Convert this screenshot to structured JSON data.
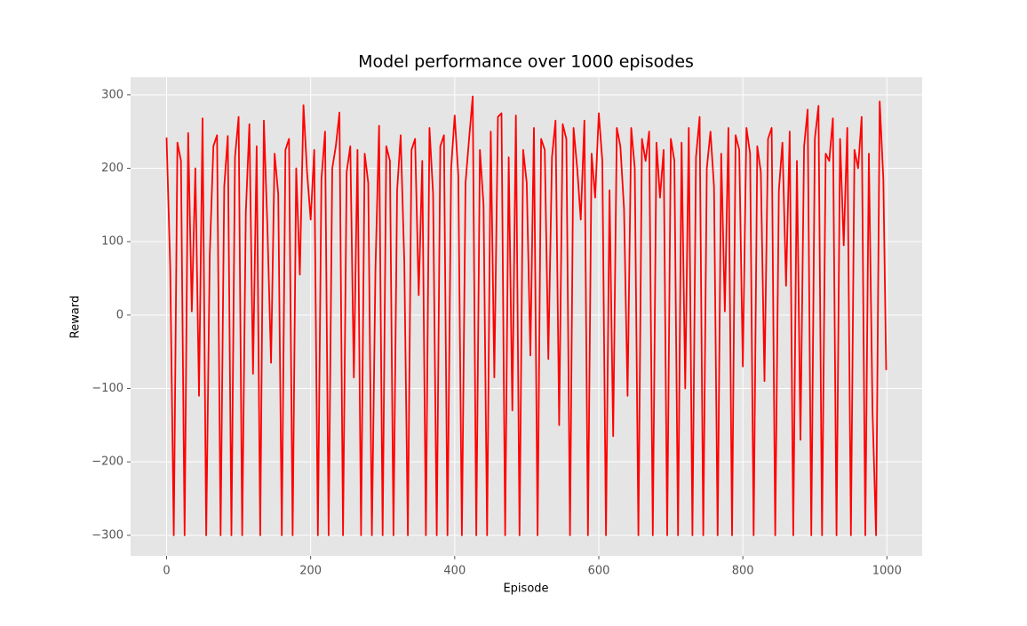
{
  "chart_data": {
    "type": "line",
    "title": "Model performance over 1000 episodes",
    "xlabel": "Episode",
    "ylabel": "Reward",
    "x": [
      0,
      5,
      10,
      15,
      20,
      25,
      30,
      35,
      40,
      45,
      50,
      55,
      60,
      65,
      70,
      75,
      80,
      85,
      90,
      95,
      100,
      105,
      110,
      115,
      120,
      125,
      130,
      135,
      140,
      145,
      150,
      155,
      160,
      165,
      170,
      175,
      180,
      185,
      190,
      195,
      200,
      205,
      210,
      215,
      220,
      225,
      230,
      235,
      240,
      245,
      250,
      255,
      260,
      265,
      270,
      275,
      280,
      285,
      290,
      295,
      300,
      305,
      310,
      315,
      320,
      325,
      330,
      335,
      340,
      345,
      350,
      355,
      360,
      365,
      370,
      375,
      380,
      385,
      390,
      395,
      400,
      405,
      410,
      415,
      420,
      425,
      430,
      435,
      440,
      445,
      450,
      455,
      460,
      465,
      470,
      475,
      480,
      485,
      490,
      495,
      500,
      505,
      510,
      515,
      520,
      525,
      530,
      535,
      540,
      545,
      550,
      555,
      560,
      565,
      570,
      575,
      580,
      585,
      590,
      595,
      600,
      605,
      610,
      615,
      620,
      625,
      630,
      635,
      640,
      645,
      650,
      655,
      660,
      665,
      670,
      675,
      680,
      685,
      690,
      695,
      700,
      705,
      710,
      715,
      720,
      725,
      730,
      735,
      740,
      745,
      750,
      755,
      760,
      765,
      770,
      775,
      780,
      785,
      790,
      795,
      800,
      805,
      810,
      815,
      820,
      825,
      830,
      835,
      840,
      845,
      850,
      855,
      860,
      865,
      870,
      875,
      880,
      885,
      890,
      895,
      900,
      905,
      910,
      915,
      920,
      925,
      930,
      935,
      940,
      945,
      950,
      955,
      960,
      965,
      970,
      975,
      980,
      985,
      990,
      995,
      999
    ],
    "series": [
      {
        "name": "Reward",
        "color": "#ff0000",
        "values": [
          242,
          65,
          -300,
          235,
          210,
          -300,
          248,
          5,
          200,
          -110,
          268,
          -300,
          82,
          230,
          245,
          -300,
          175,
          244,
          -300,
          215,
          270,
          -300,
          140,
          260,
          -80,
          230,
          -300,
          265,
          120,
          -65,
          220,
          165,
          -300,
          225,
          240,
          -300,
          200,
          55,
          286,
          195,
          130,
          225,
          -300,
          185,
          250,
          -300,
          200,
          230,
          276,
          -300,
          195,
          230,
          -85,
          225,
          -300,
          220,
          180,
          -300,
          62,
          258,
          -300,
          230,
          210,
          -300,
          170,
          245,
          72,
          -300,
          225,
          240,
          27,
          210,
          -300,
          255,
          165,
          -300,
          230,
          245,
          -300,
          200,
          272,
          190,
          -300,
          180,
          240,
          298,
          -300,
          225,
          150,
          -300,
          250,
          -85,
          270,
          275,
          -300,
          215,
          -130,
          272,
          -300,
          225,
          180,
          -55,
          255,
          -300,
          240,
          225,
          -60,
          215,
          265,
          -150,
          260,
          240,
          -300,
          255,
          200,
          130,
          265,
          -300,
          220,
          160,
          275,
          210,
          -300,
          170,
          -165,
          255,
          230,
          145,
          -110,
          255,
          200,
          -300,
          240,
          210,
          250,
          -300,
          235,
          160,
          225,
          -300,
          240,
          210,
          -300,
          235,
          -100,
          255,
          -300,
          215,
          270,
          -300,
          200,
          250,
          175,
          -300,
          220,
          5,
          255,
          -300,
          245,
          225,
          -70,
          255,
          220,
          -300,
          230,
          195,
          -90,
          240,
          255,
          -300,
          170,
          235,
          40,
          250,
          -300,
          210,
          -170,
          230,
          280,
          -300,
          240,
          285,
          -300,
          220,
          210,
          268,
          -300,
          240,
          95,
          255,
          -300,
          225,
          200,
          270,
          -300,
          220,
          -130,
          -300,
          291,
          185,
          -75
        ]
      }
    ],
    "xlim": [
      -49.95,
      1048.95
    ],
    "xticks": [
      0,
      200,
      400,
      600,
      800,
      1000
    ],
    "ylim": [
      -328,
      324
    ],
    "yticks": [
      {
        "value": -300,
        "label": "−300"
      },
      {
        "value": -200,
        "label": "−200"
      },
      {
        "value": -100,
        "label": "−100"
      },
      0,
      100,
      200,
      300
    ],
    "grid": true
  }
}
